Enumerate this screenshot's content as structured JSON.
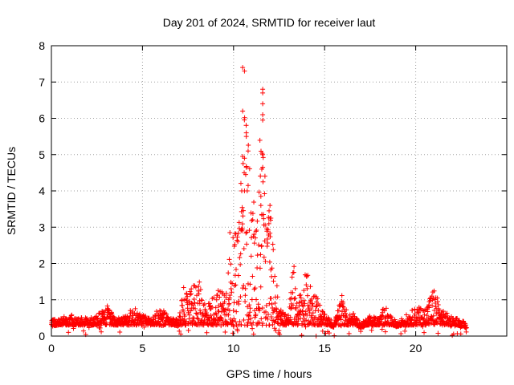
{
  "chart_data": {
    "type": "scatter",
    "title": "Day 201 of 2024, SRMTID for receiver laut",
    "xlabel": "GPS time / hours",
    "ylabel": "SRMTID / TECUs",
    "xlim": [
      0,
      25
    ],
    "ylim": [
      0,
      8
    ],
    "xticks": [
      0,
      5,
      10,
      15,
      20
    ],
    "yticks": [
      0,
      1,
      2,
      3,
      4,
      5,
      6,
      7,
      8
    ],
    "grid": true,
    "marker": "plus",
    "colors": {
      "series": "#ff0000",
      "grid": "#a0a0a0",
      "axis": "#000000"
    },
    "series": [
      {
        "name": "SRMTID",
        "envelope_x": [
          0,
          0.5,
          1,
          1.5,
          2,
          2.5,
          3,
          3.5,
          4,
          4.5,
          5,
          5.5,
          6,
          6.5,
          7,
          7.2,
          7.5,
          8,
          8.5,
          9,
          9.5,
          10,
          10.3,
          10.5,
          10.8,
          11,
          11.3,
          11.5,
          11.8,
          12,
          12.3,
          12.5,
          13,
          13.3,
          13.5,
          14,
          14.3,
          14.5,
          15,
          15.5,
          16,
          16.3,
          16.5,
          17,
          17.5,
          18,
          18.3,
          18.5,
          19,
          19.5,
          20,
          20.5,
          21,
          21.3,
          21.5,
          22,
          22.5,
          22.8
        ],
        "envelope_y": [
          0.45,
          0.5,
          0.6,
          0.55,
          0.5,
          0.55,
          0.9,
          0.5,
          0.55,
          0.8,
          0.6,
          0.5,
          0.85,
          0.5,
          0.45,
          1.4,
          1.1,
          1.7,
          0.9,
          1.2,
          1.5,
          2.8,
          3.0,
          7.4,
          5.6,
          4.0,
          3.3,
          6.8,
          3.6,
          3.5,
          2.0,
          0.8,
          0.6,
          2.1,
          1.0,
          1.8,
          1.4,
          1.2,
          0.6,
          0.4,
          1.2,
          0.5,
          0.7,
          0.35,
          0.6,
          0.5,
          0.9,
          0.6,
          0.4,
          0.6,
          0.8,
          0.8,
          1.4,
          0.9,
          0.7,
          0.55,
          0.45,
          0.35
        ],
        "highlight_points": [
          {
            "x": 10.5,
            "y": 7.4
          },
          {
            "x": 10.6,
            "y": 7.3
          },
          {
            "x": 10.5,
            "y": 6.2
          },
          {
            "x": 11.6,
            "y": 6.8
          },
          {
            "x": 11.6,
            "y": 6.7
          },
          {
            "x": 11.6,
            "y": 6.4
          },
          {
            "x": 11.6,
            "y": 6.1
          },
          {
            "x": 11.6,
            "y": 5.95
          },
          {
            "x": 10.7,
            "y": 5.6
          },
          {
            "x": 10.7,
            "y": 5.5
          },
          {
            "x": 10.8,
            "y": 5.1
          },
          {
            "x": 10.5,
            "y": 4.95
          },
          {
            "x": 10.6,
            "y": 4.9
          },
          {
            "x": 10.7,
            "y": 4.65
          },
          {
            "x": 11.6,
            "y": 5.0
          },
          {
            "x": 11.55,
            "y": 4.6
          },
          {
            "x": 11.6,
            "y": 4.65
          },
          {
            "x": 10.8,
            "y": 4.15
          },
          {
            "x": 10.45,
            "y": 4.0
          },
          {
            "x": 10.6,
            "y": 4.0
          },
          {
            "x": 10.75,
            "y": 4.0
          },
          {
            "x": 11.5,
            "y": 3.85
          },
          {
            "x": 11.5,
            "y": 3.6
          },
          {
            "x": 12.0,
            "y": 3.6
          },
          {
            "x": 11.95,
            "y": 3.45
          },
          {
            "x": 12.0,
            "y": 3.25
          },
          {
            "x": 12.05,
            "y": 3.25
          },
          {
            "x": 10.5,
            "y": 2.95
          },
          {
            "x": 9.8,
            "y": 2.85
          },
          {
            "x": 11.55,
            "y": 3.35
          }
        ]
      }
    ]
  }
}
